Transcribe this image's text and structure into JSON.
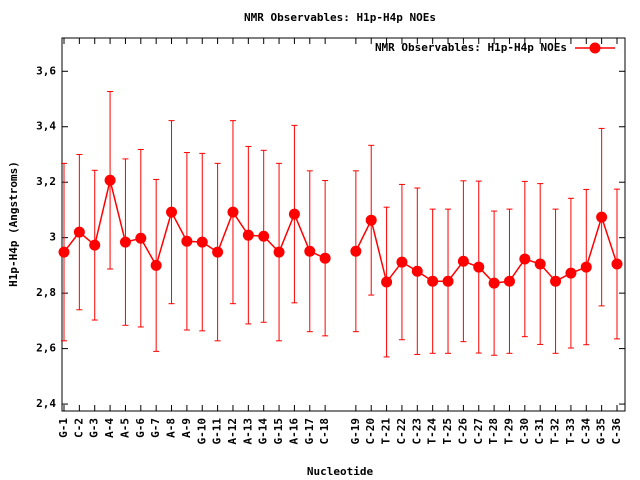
{
  "chart_data": {
    "type": "line",
    "title": "NMR Observables: H1p-H4p NOEs",
    "x_label": "Nucleotide",
    "y_label": "H1p-H4p (Angstroms)",
    "categories": [
      "G-1",
      "C-2",
      "G-3",
      "A-4",
      "A-5",
      "G-6",
      "G-7",
      "A-8",
      "A-9",
      "G-10",
      "G-11",
      "A-12",
      "A-13",
      "G-14",
      "G-15",
      "A-16",
      "G-17",
      "C-18",
      null,
      "G-19",
      "C-20",
      "T-21",
      "C-22",
      "C-23",
      "T-24",
      "T-25",
      "C-26",
      "C-27",
      "T-28",
      "T-29",
      "C-30",
      "C-31",
      "T-32",
      "T-33",
      "C-34",
      "G-35",
      "C-36"
    ],
    "series": [
      {
        "name": "NMR Observables: H1p-H4p NOEs",
        "color": "#ff0000",
        "values": [
          2.948,
          3.02,
          2.973,
          3.207,
          2.984,
          2.998,
          2.9,
          3.092,
          2.987,
          2.984,
          2.948,
          3.092,
          3.009,
          3.005,
          2.948,
          3.085,
          2.951,
          2.926,
          null,
          2.951,
          3.063,
          2.84,
          2.912,
          2.879,
          2.843,
          2.843,
          2.915,
          2.894,
          2.836,
          2.843,
          2.923,
          2.905,
          2.843,
          2.872,
          2.894,
          3.074,
          2.905
        ],
        "errors": [
          0.32,
          0.28,
          0.27,
          0.32,
          0.3,
          0.32,
          0.31,
          0.33,
          0.32,
          0.32,
          0.32,
          0.33,
          0.32,
          0.31,
          0.32,
          0.32,
          0.29,
          0.28,
          null,
          0.29,
          0.27,
          0.27,
          0.28,
          0.3,
          0.26,
          0.26,
          0.29,
          0.31,
          0.26,
          0.26,
          0.28,
          0.29,
          0.26,
          0.27,
          0.28,
          0.32,
          0.27
        ]
      }
    ],
    "ylim": [
      2.375,
      3.72
    ],
    "yticks": [
      {
        "value": 2.4,
        "label": "2,4"
      },
      {
        "value": 2.6,
        "label": "2,6"
      },
      {
        "value": 2.8,
        "label": "2,8"
      },
      3,
      {
        "value": 3.2,
        "label": "3,2"
      },
      {
        "value": 3.4,
        "label": "3,4"
      },
      {
        "value": 3.6,
        "label": "3,6"
      }
    ],
    "legend": "top-right"
  }
}
